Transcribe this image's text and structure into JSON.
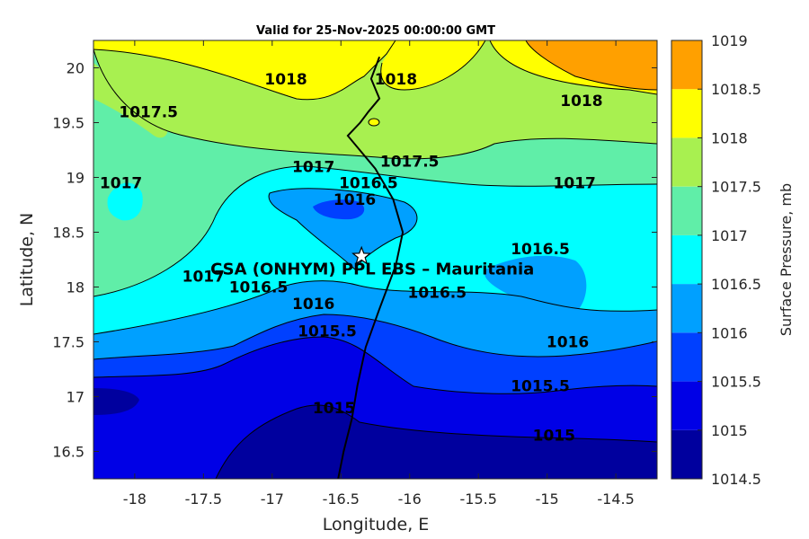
{
  "title": "Valid for 25-Nov-2025 00:00:00 GMT",
  "chart_data": {
    "type": "filled-contour map",
    "variable": "Surface Pressure",
    "xlabel": "Longitude, E",
    "ylabel": "Latitude, N",
    "xlim": [
      -18.3,
      -14.2
    ],
    "ylim": [
      16.25,
      20.25
    ],
    "xticks": [
      -18,
      -17.5,
      -17,
      -16.5,
      -16,
      -15.5,
      -15,
      -14.5
    ],
    "yticks": [
      16.5,
      17,
      17.5,
      18,
      18.5,
      19,
      19.5,
      20
    ],
    "colorbar": {
      "label": "Surface Pressure, mb",
      "levels": [
        1014.5,
        1015,
        1015.5,
        1016,
        1016.5,
        1017,
        1017.5,
        1018,
        1018.5,
        1019
      ],
      "colors": [
        "#00009e",
        "#0000e6",
        "#0040ff",
        "#00a0ff",
        "#00ffff",
        "#60eea8",
        "#a8f050",
        "#ffff00",
        "#ffa000",
        "#ff5a00"
      ]
    },
    "contour_labels": [
      {
        "text": "1018",
        "lon": -16.9,
        "lat": 19.85
      },
      {
        "text": "1018",
        "lon": -16.1,
        "lat": 19.85
      },
      {
        "text": "1018",
        "lon": -14.75,
        "lat": 19.65
      },
      {
        "text": "1017.5",
        "lon": -17.9,
        "lat": 19.55
      },
      {
        "text": "1017.5",
        "lon": -16.0,
        "lat": 19.1
      },
      {
        "text": "1017",
        "lon": -16.7,
        "lat": 19.05
      },
      {
        "text": "1017",
        "lon": -14.8,
        "lat": 18.9
      },
      {
        "text": "1017",
        "lon": -18.1,
        "lat": 18.9
      },
      {
        "text": "1016.5",
        "lon": -16.3,
        "lat": 18.9
      },
      {
        "text": "1016",
        "lon": -16.4,
        "lat": 18.75
      },
      {
        "text": "1017",
        "lon": -17.5,
        "lat": 18.05
      },
      {
        "text": "1016.5",
        "lon": -17.1,
        "lat": 17.95
      },
      {
        "text": "1016.5",
        "lon": -15.8,
        "lat": 17.9
      },
      {
        "text": "1016.5",
        "lon": -15.05,
        "lat": 18.3
      },
      {
        "text": "1016",
        "lon": -16.7,
        "lat": 17.8
      },
      {
        "text": "1015.5",
        "lon": -16.6,
        "lat": 17.55
      },
      {
        "text": "1016",
        "lon": -14.85,
        "lat": 17.45
      },
      {
        "text": "1015.5",
        "lon": -15.05,
        "lat": 17.05
      },
      {
        "text": "1015",
        "lon": -16.55,
        "lat": 16.85
      },
      {
        "text": "1015",
        "lon": -14.95,
        "lat": 16.6
      }
    ],
    "site": {
      "name": "CSA (ONHYM) PPL EBS  – Mauritania",
      "lon": -16.35,
      "lat": 18.28
    },
    "coastline": [
      [
        -16.52,
        16.25
      ],
      [
        -16.48,
        16.5
      ],
      [
        -16.42,
        16.8
      ],
      [
        -16.38,
        17.1
      ],
      [
        -16.32,
        17.45
      ],
      [
        -16.22,
        17.8
      ],
      [
        -16.1,
        18.2
      ],
      [
        -16.05,
        18.5
      ],
      [
        -16.12,
        18.8
      ],
      [
        -16.25,
        19.08
      ],
      [
        -16.45,
        19.38
      ],
      [
        -16.36,
        19.5
      ],
      [
        -16.3,
        19.6
      ],
      [
        -16.22,
        19.72
      ],
      [
        -16.28,
        19.9
      ],
      [
        -16.25,
        20.0
      ],
      [
        -16.22,
        20.1
      ]
    ]
  }
}
